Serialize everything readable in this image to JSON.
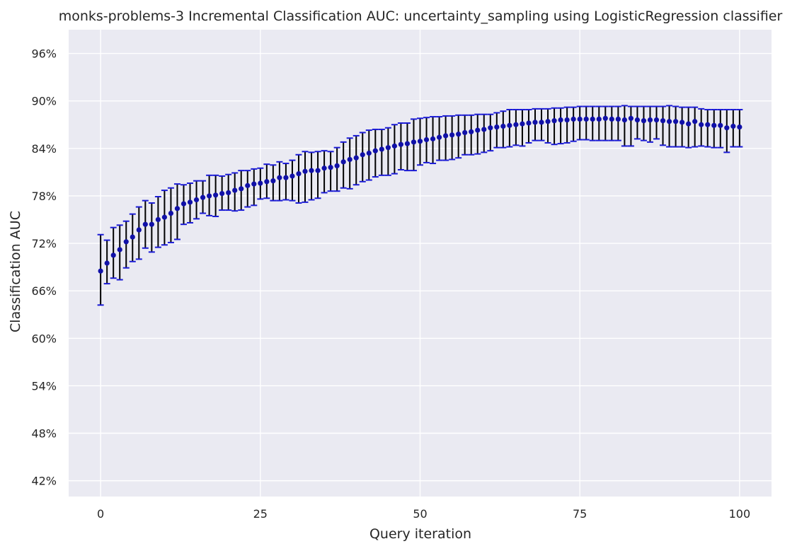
{
  "chart_data": {
    "type": "scatter",
    "title": "monks-problems-3 Incremental Classification AUC: uncertainty_sampling using LogisticRegression classifier",
    "xlabel": "Query iteration",
    "ylabel": "Classification AUC",
    "xlim": [
      -5,
      105
    ],
    "ylim": [
      0.4,
      0.99
    ],
    "x_ticks": [
      0,
      25,
      50,
      75,
      100
    ],
    "x_tick_labels": [
      "0",
      "25",
      "50",
      "75",
      "100"
    ],
    "y_ticks": [
      0.42,
      0.48,
      0.54,
      0.6,
      0.66,
      0.72,
      0.78,
      0.84,
      0.9,
      0.96
    ],
    "y_tick_labels": [
      "42%",
      "48%",
      "54%",
      "60%",
      "66%",
      "72%",
      "78%",
      "84%",
      "90%",
      "96%"
    ],
    "grid": true,
    "legend": "none",
    "colors": {
      "background": "#eaeaf2",
      "grid": "#ffffff",
      "point": "#1010a8",
      "error_bar": "#000000",
      "cap": "#1a1ad6"
    },
    "x": [
      0,
      1,
      2,
      3,
      4,
      5,
      6,
      7,
      8,
      9,
      10,
      11,
      12,
      13,
      14,
      15,
      16,
      17,
      18,
      19,
      20,
      21,
      22,
      23,
      24,
      25,
      26,
      27,
      28,
      29,
      30,
      31,
      32,
      33,
      34,
      35,
      36,
      37,
      38,
      39,
      40,
      41,
      42,
      43,
      44,
      45,
      46,
      47,
      48,
      49,
      50,
      51,
      52,
      53,
      54,
      55,
      56,
      57,
      58,
      59,
      60,
      61,
      62,
      63,
      64,
      65,
      66,
      67,
      68,
      69,
      70,
      71,
      72,
      73,
      74,
      75,
      76,
      77,
      78,
      79,
      80,
      81,
      82,
      83,
      84,
      85,
      86,
      87,
      88,
      89,
      90,
      91,
      92,
      93,
      94,
      95,
      96,
      97,
      98,
      99,
      100
    ],
    "y": [
      0.685,
      0.695,
      0.705,
      0.712,
      0.722,
      0.728,
      0.737,
      0.744,
      0.744,
      0.75,
      0.753,
      0.758,
      0.764,
      0.77,
      0.772,
      0.775,
      0.778,
      0.78,
      0.781,
      0.783,
      0.784,
      0.787,
      0.789,
      0.793,
      0.795,
      0.796,
      0.798,
      0.799,
      0.803,
      0.803,
      0.805,
      0.808,
      0.811,
      0.812,
      0.812,
      0.815,
      0.816,
      0.818,
      0.823,
      0.826,
      0.828,
      0.832,
      0.834,
      0.837,
      0.839,
      0.841,
      0.843,
      0.845,
      0.846,
      0.848,
      0.849,
      0.851,
      0.852,
      0.854,
      0.856,
      0.857,
      0.858,
      0.86,
      0.861,
      0.863,
      0.864,
      0.866,
      0.867,
      0.868,
      0.869,
      0.87,
      0.871,
      0.872,
      0.873,
      0.873,
      0.874,
      0.875,
      0.876,
      0.876,
      0.877,
      0.877,
      0.877,
      0.877,
      0.877,
      0.878,
      0.877,
      0.877,
      0.876,
      0.878,
      0.876,
      0.875,
      0.876,
      0.876,
      0.875,
      0.874,
      0.874,
      0.873,
      0.871,
      0.874,
      0.87,
      0.87,
      0.869,
      0.869,
      0.866,
      0.868,
      0.867
    ],
    "y_lower": [
      0.642,
      0.669,
      0.676,
      0.674,
      0.689,
      0.697,
      0.7,
      0.714,
      0.709,
      0.715,
      0.718,
      0.721,
      0.725,
      0.744,
      0.746,
      0.751,
      0.758,
      0.755,
      0.754,
      0.762,
      0.762,
      0.761,
      0.762,
      0.766,
      0.768,
      0.776,
      0.777,
      0.774,
      0.774,
      0.775,
      0.774,
      0.771,
      0.772,
      0.775,
      0.777,
      0.784,
      0.786,
      0.786,
      0.79,
      0.789,
      0.794,
      0.798,
      0.8,
      0.804,
      0.806,
      0.806,
      0.808,
      0.813,
      0.812,
      0.812,
      0.819,
      0.822,
      0.821,
      0.825,
      0.825,
      0.826,
      0.828,
      0.832,
      0.832,
      0.833,
      0.835,
      0.837,
      0.841,
      0.841,
      0.842,
      0.844,
      0.843,
      0.847,
      0.85,
      0.85,
      0.847,
      0.845,
      0.846,
      0.847,
      0.849,
      0.851,
      0.851,
      0.85,
      0.85,
      0.85,
      0.85,
      0.85,
      0.843,
      0.843,
      0.852,
      0.85,
      0.848,
      0.852,
      0.844,
      0.842,
      0.842,
      0.842,
      0.841,
      0.842,
      0.843,
      0.842,
      0.841,
      0.841,
      0.835,
      0.842,
      0.842
    ],
    "y_upper": [
      0.731,
      0.724,
      0.74,
      0.743,
      0.748,
      0.757,
      0.766,
      0.774,
      0.771,
      0.779,
      0.787,
      0.79,
      0.795,
      0.794,
      0.796,
      0.799,
      0.799,
      0.806,
      0.806,
      0.805,
      0.807,
      0.809,
      0.812,
      0.812,
      0.814,
      0.815,
      0.82,
      0.819,
      0.823,
      0.821,
      0.825,
      0.832,
      0.836,
      0.835,
      0.836,
      0.837,
      0.836,
      0.841,
      0.848,
      0.853,
      0.856,
      0.86,
      0.863,
      0.864,
      0.864,
      0.866,
      0.87,
      0.872,
      0.872,
      0.877,
      0.878,
      0.879,
      0.88,
      0.88,
      0.881,
      0.881,
      0.882,
      0.882,
      0.882,
      0.883,
      0.883,
      0.883,
      0.885,
      0.887,
      0.889,
      0.889,
      0.889,
      0.889,
      0.89,
      0.89,
      0.89,
      0.891,
      0.891,
      0.892,
      0.892,
      0.893,
      0.893,
      0.893,
      0.893,
      0.893,
      0.893,
      0.893,
      0.894,
      0.893,
      0.893,
      0.893,
      0.893,
      0.893,
      0.893,
      0.894,
      0.893,
      0.892,
      0.892,
      0.892,
      0.89,
      0.889,
      0.889,
      0.889,
      0.889,
      0.889,
      0.889
    ]
  }
}
